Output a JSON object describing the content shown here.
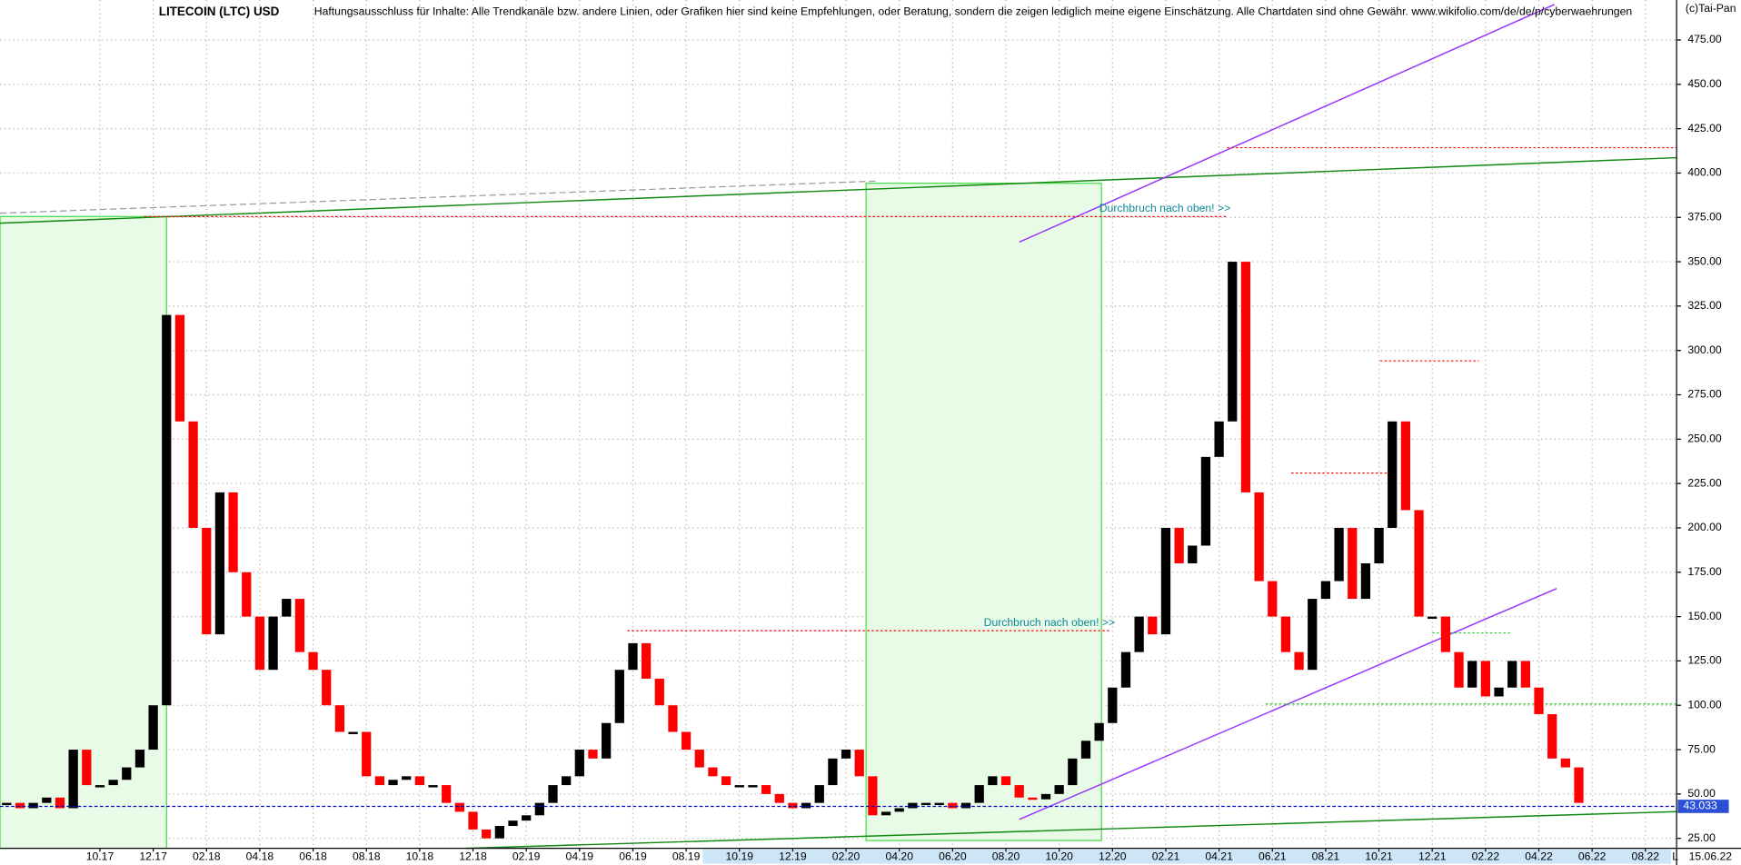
{
  "chart_data": {
    "type": "candlestick",
    "title": "LITECOIN (LTC) USD",
    "subtitle": "Haftungsausschluss für Inhalte: Alle Trendkanäle bzw. andere Linien, oder Grafiken hier sind keine Empfehlungen, oder Beratung, sondern die zeigen lediglich meine eigene Einschätzung. Alle Chartdaten sind ohne Gewähr.  www.wikifolio.com/de/de/p/cyberwaehrungen",
    "copyright": "(c)Tai-Pan",
    "annotations": [
      "Durchbruch nach oben! >>",
      "Durchbruch nach oben! >>"
    ],
    "last_price": 43.033,
    "last_date": "15.06.22",
    "period_marker": "L",
    "up_color": "#000000",
    "down_color": "#ff0000",
    "grid": true,
    "x": [
      0.5,
      1,
      1.5,
      2,
      2.5,
      3,
      3.5,
      4,
      4.5,
      5,
      5.5,
      6,
      6.5,
      7,
      7.5,
      8,
      8.5,
      9,
      9.5,
      10,
      10.5,
      11,
      11.5,
      12,
      12.5,
      13,
      13.5,
      14,
      14.5,
      15,
      15.5,
      16,
      16.5,
      17,
      17.5,
      18,
      18.5,
      19,
      19.5,
      20,
      20.5,
      21,
      21.5,
      22,
      22.5,
      23,
      23.5,
      24,
      24.5,
      25,
      25.5,
      26,
      26.5,
      27,
      27.5,
      28,
      28.5,
      29,
      29.5,
      30,
      30.5,
      31,
      31.5,
      32,
      32.5,
      33,
      33.5,
      34,
      34.5,
      35,
      35.5,
      36,
      36.5,
      37,
      37.5,
      38,
      38.5,
      39,
      39.5,
      40,
      40.5,
      41,
      41.5,
      42,
      42.5,
      43,
      43.5,
      44,
      44.5,
      45,
      45.5,
      46,
      46.5,
      47,
      47.5,
      48,
      48.5,
      49,
      49.5,
      50,
      50.5,
      51,
      51.5,
      52,
      52.5,
      53,
      53.5,
      54,
      54.5,
      55,
      55.5,
      56,
      56.5,
      57,
      57.5,
      58,
      58.5,
      59,
      59.5
    ],
    "values": [
      45,
      42,
      45,
      48,
      42,
      75,
      55,
      55,
      58,
      65,
      75,
      100,
      320,
      260,
      200,
      140,
      220,
      175,
      150,
      120,
      150,
      160,
      130,
      120,
      100,
      85,
      85,
      60,
      55,
      58,
      60,
      55,
      55,
      45,
      40,
      30,
      25,
      32,
      35,
      38,
      45,
      55,
      60,
      75,
      70,
      90,
      120,
      135,
      115,
      100,
      85,
      75,
      65,
      60,
      55,
      55,
      55,
      50,
      45,
      42,
      45,
      55,
      70,
      75,
      60,
      38,
      40,
      42,
      45,
      45,
      45,
      42,
      45,
      55,
      60,
      55,
      48,
      47,
      50,
      55,
      70,
      80,
      90,
      110,
      130,
      150,
      140,
      200,
      180,
      190,
      240,
      260,
      350,
      220,
      170,
      150,
      130,
      120,
      160,
      170,
      200,
      160,
      180,
      200,
      260,
      210,
      150,
      150,
      130,
      110,
      125,
      105,
      110,
      125,
      110,
      95,
      70,
      65,
      45
    ],
    "xlim": [
      0.25,
      63.17
    ],
    "xticks": [
      {
        "value": 4,
        "label": "10.17"
      },
      {
        "value": 6,
        "label": "12.17"
      },
      {
        "value": 8,
        "label": "02.18"
      },
      {
        "value": 10,
        "label": "04.18"
      },
      {
        "value": 12,
        "label": "06.18"
      },
      {
        "value": 14,
        "label": "08.18"
      },
      {
        "value": 16,
        "label": "10.18"
      },
      {
        "value": 18,
        "label": "12.18"
      },
      {
        "value": 20,
        "label": "02.19"
      },
      {
        "value": 22,
        "label": "04.19"
      },
      {
        "value": 24,
        "label": "06.19"
      },
      {
        "value": 26,
        "label": "08.19"
      },
      {
        "value": 28,
        "label": "10.19"
      },
      {
        "value": 30,
        "label": "12.19"
      },
      {
        "value": 32,
        "label": "02.20"
      },
      {
        "value": 34,
        "label": "04.20"
      },
      {
        "value": 36,
        "label": "06.20"
      },
      {
        "value": 38,
        "label": "08.20"
      },
      {
        "value": 40,
        "label": "10.20"
      },
      {
        "value": 42,
        "label": "12.20"
      },
      {
        "value": 44,
        "label": "02.21"
      },
      {
        "value": 46,
        "label": "04.21"
      },
      {
        "value": 48,
        "label": "06.21"
      },
      {
        "value": 50,
        "label": "08.21"
      },
      {
        "value": 52,
        "label": "10.21"
      },
      {
        "value": 54,
        "label": "12.21"
      },
      {
        "value": 56,
        "label": "02.22"
      },
      {
        "value": 58,
        "label": "04.22"
      },
      {
        "value": 60,
        "label": "06.22"
      },
      {
        "value": 62,
        "label": "08.22"
      }
    ],
    "ylim": [
      19.4,
      497.5
    ],
    "yticks": [
      {
        "value": 25,
        "label": "25.00"
      },
      {
        "value": 50,
        "label": "50.00"
      },
      {
        "value": 75,
        "label": "75.00"
      },
      {
        "value": 100,
        "label": "100.00"
      },
      {
        "value": 125,
        "label": "125.00"
      },
      {
        "value": 150,
        "label": "150.00"
      },
      {
        "value": 175,
        "label": "175.00"
      },
      {
        "value": 200,
        "label": "200.00"
      },
      {
        "value": 225,
        "label": "225.00"
      },
      {
        "value": 250,
        "label": "250.00"
      },
      {
        "value": 275,
        "label": "275.00"
      },
      {
        "value": 300,
        "label": "300.00"
      },
      {
        "value": 325,
        "label": "325.00"
      },
      {
        "value": 350,
        "label": "350.00"
      },
      {
        "value": 375,
        "label": "375.00"
      },
      {
        "value": 400,
        "label": "400.00"
      },
      {
        "value": 425,
        "label": "425.00"
      },
      {
        "value": 450,
        "label": "450.00"
      },
      {
        "value": 475,
        "label": "475.00"
      }
    ]
  }
}
